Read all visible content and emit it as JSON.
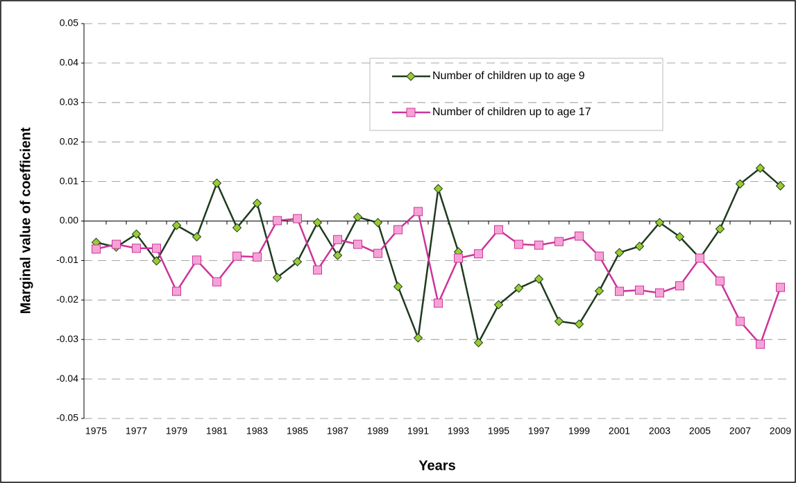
{
  "chart_data": {
    "type": "line",
    "y_label": "Marginal value of coefficient",
    "x_label": "Years",
    "categories": [
      "1975",
      null,
      "1977",
      null,
      "1979",
      null,
      "1981",
      null,
      "1983",
      null,
      "1985",
      null,
      "1987",
      null,
      "1989",
      null,
      "1991",
      null,
      "1993",
      null,
      "1995",
      null,
      "1997",
      null,
      "1999",
      null,
      "2001",
      null,
      "2003",
      null,
      "2005",
      null,
      "2007",
      null,
      "2009"
    ],
    "series": [
      {
        "name": "Number of children up to age 9",
        "color": "#1e3a1e",
        "marker": "diamond",
        "marker_fill": "#99cc33",
        "values": [
          -0.0054,
          -0.0066,
          -0.0033,
          -0.0101,
          -0.0011,
          -0.004,
          0.0096,
          -0.0017,
          0.0045,
          -0.0143,
          -0.0103,
          -0.0004,
          -0.0087,
          0.001,
          -0.0004,
          -0.0166,
          -0.0296,
          0.0082,
          -0.0078,
          -0.0308,
          -0.0212,
          -0.017,
          -0.0147,
          -0.0254,
          -0.0261,
          -0.0177,
          -0.008,
          -0.0064,
          -0.0004,
          -0.004,
          -0.0094,
          -0.002,
          0.0094,
          0.0134,
          0.0089
        ]
      },
      {
        "name": "Number of children up to age 17",
        "color": "#cc3399",
        "marker": "square",
        "marker_fill": "#f5a3d6",
        "values": [
          -0.0071,
          -0.0059,
          -0.0069,
          -0.0069,
          -0.0178,
          -0.0099,
          -0.0154,
          -0.0089,
          -0.0091,
          0.0001,
          0.0006,
          -0.0124,
          -0.0047,
          -0.0059,
          -0.0082,
          -0.0022,
          0.0024,
          -0.0208,
          -0.0094,
          -0.0083,
          -0.0022,
          -0.0059,
          -0.0061,
          -0.0052,
          -0.0038,
          -0.0089,
          -0.0178,
          -0.0175,
          -0.0182,
          -0.0164,
          -0.0094,
          -0.0152,
          -0.0254,
          -0.0312,
          -0.0168
        ]
      }
    ],
    "ylim": [
      -0.05,
      0.05
    ],
    "yticks": [
      -0.05,
      -0.04,
      -0.03,
      -0.02,
      -0.01,
      {
        "value": 0,
        "label": "0.00"
      },
      0.01,
      0.02,
      0.03,
      0.04,
      0.05
    ],
    "grid": true,
    "legend": "top-right"
  }
}
